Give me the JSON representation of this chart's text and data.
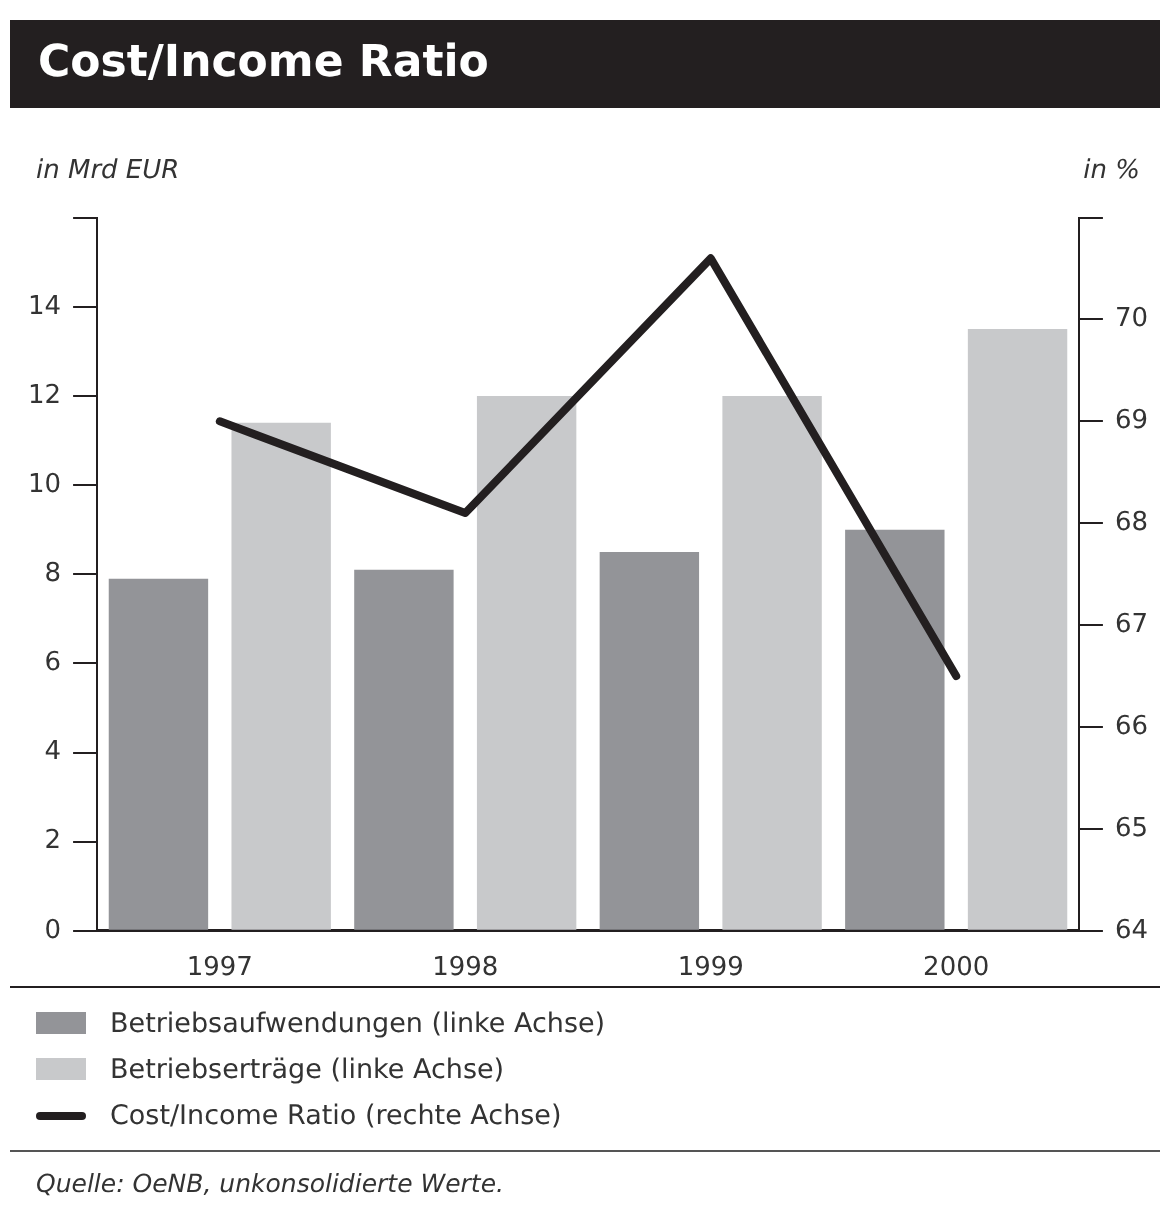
{
  "chart_data": {
    "type": "bar",
    "title": "Cost/Income Ratio",
    "ylabel": "in Mrd EUR",
    "y2label": "in %",
    "categories": [
      "1997",
      "1998",
      "1999",
      "2000"
    ],
    "series": [
      {
        "name": "Betriebsaufwendungen (linke Achse)",
        "color": "#939498",
        "values": [
          7.9,
          8.1,
          8.5,
          9.0
        ]
      },
      {
        "name": "Betriebserträge (linke Achse)",
        "color": "#c8c9cb",
        "values": [
          11.4,
          12.0,
          12.0,
          13.5
        ]
      },
      {
        "name": "Cost/Income Ratio (rechte Achse)",
        "type": "line",
        "axis": "y2",
        "color": "#231f20",
        "values": [
          69.0,
          68.1,
          70.6,
          66.5
        ]
      }
    ],
    "ylim": [
      0,
      16
    ],
    "yticks": [
      0,
      2,
      4,
      6,
      8,
      10,
      12,
      14,
      {
        "value": 16,
        "label": null
      }
    ],
    "y2lim": [
      64,
      71
    ],
    "y2ticks": [
      64,
      65,
      66,
      67,
      68,
      69,
      70,
      {
        "value": 71,
        "label": null
      }
    ],
    "grid": false,
    "legend": "bottom",
    "marker": "none",
    "annotations": [
      "Quelle: OeNB, unkonsolidierte Werte."
    ]
  }
}
